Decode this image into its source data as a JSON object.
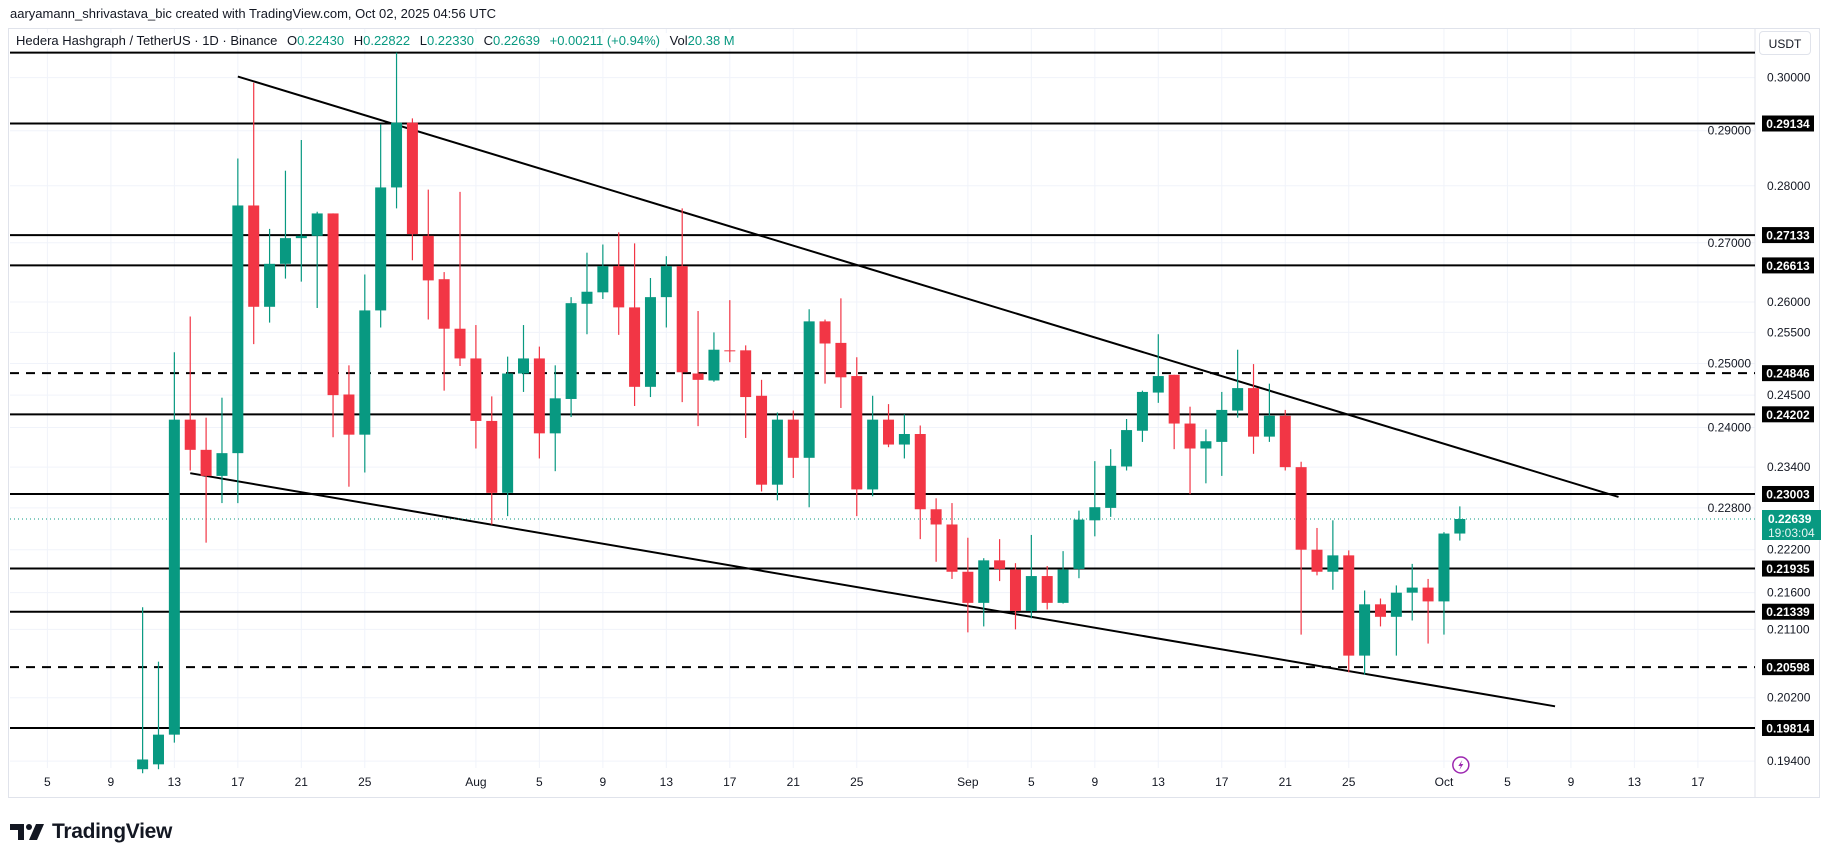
{
  "attribution": "aaryamann_shrivastava_bic created with TradingView.com, Oct 02, 2025 04:56 UTC",
  "legend": {
    "symbol": "Hedera Hashgraph / TetherUS · 1D · Binance",
    "o_label": "O",
    "open": "0.22430",
    "h_label": "H",
    "high": "0.22822",
    "l_label": "L",
    "low": "0.22330",
    "c_label": "C",
    "close": "0.22639",
    "change": "+0.00211 (+0.94%)",
    "vol_label": "Vol",
    "volume": "20.38 M"
  },
  "currency_button": "USDT",
  "logo_text": "TradingView",
  "colors": {
    "up": "#089981",
    "down": "#f23645",
    "level": "#000000",
    "event_icon": "#9c27b0",
    "grid": "#f0f3fa"
  },
  "event_icon": "lightning-icon",
  "current_price": {
    "value": "0.22639",
    "countdown": "19:03:04"
  },
  "chart_data": {
    "type": "candlestick",
    "title": "Hedera Hashgraph / TetherUS · 1D · Binance",
    "y_scale": "log",
    "grid": true,
    "price_ticks": [
      "0.30000",
      "0.29000",
      "0.28000",
      "0.27000",
      "0.26000",
      "0.25500",
      "0.25000",
      "0.24500",
      "0.24000",
      "0.23400",
      "0.22800",
      "0.22200",
      "0.21600",
      "0.21100",
      "0.20200",
      "0.19400"
    ],
    "time_ticks": [
      [
        "5",
        "2025-07-05"
      ],
      [
        "9",
        "2025-07-09"
      ],
      [
        "13",
        "2025-07-13"
      ],
      [
        "17",
        "2025-07-17"
      ],
      [
        "21",
        "2025-07-21"
      ],
      [
        "25",
        "2025-07-25"
      ],
      [
        "Aug",
        "2025-08-01"
      ],
      [
        "5",
        "2025-08-05"
      ],
      [
        "9",
        "2025-08-09"
      ],
      [
        "13",
        "2025-08-13"
      ],
      [
        "17",
        "2025-08-17"
      ],
      [
        "21",
        "2025-08-21"
      ],
      [
        "25",
        "2025-08-25"
      ],
      [
        "Sep",
        "2025-09-01"
      ],
      [
        "5",
        "2025-09-05"
      ],
      [
        "9",
        "2025-09-09"
      ],
      [
        "13",
        "2025-09-13"
      ],
      [
        "17",
        "2025-09-17"
      ],
      [
        "21",
        "2025-09-21"
      ],
      [
        "25",
        "2025-09-25"
      ],
      [
        "Oct",
        "2025-10-01"
      ],
      [
        "5",
        "2025-10-05"
      ],
      [
        "9",
        "2025-10-09"
      ],
      [
        "13",
        "2025-10-13"
      ],
      [
        "17",
        "2025-10-17"
      ]
    ],
    "levels": [
      {
        "price": 0.3048,
        "label": "",
        "dashed": false
      },
      {
        "price": 0.29134,
        "label": "0.29134",
        "dashed": false
      },
      {
        "price": 0.27133,
        "label": "0.27133",
        "dashed": false
      },
      {
        "price": 0.26613,
        "label": "0.26613",
        "dashed": false
      },
      {
        "price": 0.24846,
        "label": "0.24846",
        "dashed": true
      },
      {
        "price": 0.24202,
        "label": "0.24202",
        "dashed": false
      },
      {
        "price": 0.23003,
        "label": "0.23003",
        "dashed": false
      },
      {
        "price": 0.21935,
        "label": "0.21935",
        "dashed": false
      },
      {
        "price": 0.21339,
        "label": "0.21339",
        "dashed": false
      },
      {
        "price": 0.20598,
        "label": "0.20598",
        "dashed": true
      },
      {
        "price": 0.19814,
        "label": "0.19814",
        "dashed": false
      }
    ],
    "trendlines": [
      {
        "start": [
          "2025-07-17",
          0.3002
        ],
        "end": [
          "2025-10-12",
          0.2296
        ]
      },
      {
        "start": [
          "2025-07-14",
          0.2331
        ],
        "end": [
          "2025-10-08",
          0.2009
        ]
      }
    ],
    "event_date": "2025-10-02",
    "candles_fields": [
      "date",
      "open",
      "high",
      "low",
      "close"
    ],
    "candles": [
      [
        "2025-07-11",
        0.193,
        0.214,
        0.1925,
        0.1942
      ],
      [
        "2025-07-12",
        0.1936,
        0.2067,
        0.193,
        0.1973
      ],
      [
        "2025-07-13",
        0.1973,
        0.2518,
        0.1963,
        0.2412
      ],
      [
        "2025-07-14",
        0.2412,
        0.2576,
        0.2335,
        0.2366
      ],
      [
        "2025-07-15",
        0.2366,
        0.2415,
        0.223,
        0.2327
      ],
      [
        "2025-07-16",
        0.2327,
        0.2446,
        0.2287,
        0.2361
      ],
      [
        "2025-07-17",
        0.2361,
        0.2849,
        0.2287,
        0.2765
      ],
      [
        "2025-07-18",
        0.2765,
        0.299,
        0.2531,
        0.2592
      ],
      [
        "2025-07-19",
        0.2592,
        0.2724,
        0.2566,
        0.2664
      ],
      [
        "2025-07-20",
        0.2664,
        0.2827,
        0.2639,
        0.2708
      ],
      [
        "2025-07-21",
        0.2708,
        0.2883,
        0.2634,
        0.2712
      ],
      [
        "2025-07-22",
        0.2712,
        0.2754,
        0.259,
        0.2751
      ],
      [
        "2025-07-23",
        0.2751,
        0.2751,
        0.2385,
        0.245
      ],
      [
        "2025-07-24",
        0.2451,
        0.2497,
        0.2311,
        0.2389
      ],
      [
        "2025-07-25",
        0.2389,
        0.2646,
        0.2332,
        0.2586
      ],
      [
        "2025-07-26",
        0.2586,
        0.2912,
        0.2558,
        0.2797
      ],
      [
        "2025-07-27",
        0.2797,
        0.3048,
        0.276,
        0.2915
      ],
      [
        "2025-07-28",
        0.2915,
        0.2923,
        0.267,
        0.2715
      ],
      [
        "2025-07-29",
        0.2712,
        0.2793,
        0.2571,
        0.2636
      ],
      [
        "2025-07-30",
        0.2638,
        0.265,
        0.2457,
        0.2556
      ],
      [
        "2025-07-31",
        0.2556,
        0.2789,
        0.2496,
        0.2508
      ],
      [
        "2025-08-01",
        0.2508,
        0.2562,
        0.2368,
        0.241
      ],
      [
        "2025-08-02",
        0.241,
        0.2448,
        0.2256,
        0.2302
      ],
      [
        "2025-08-03",
        0.2302,
        0.2511,
        0.2268,
        0.2484
      ],
      [
        "2025-08-04",
        0.2484,
        0.2562,
        0.2455,
        0.2508
      ],
      [
        "2025-08-05",
        0.2508,
        0.2527,
        0.2353,
        0.2391
      ],
      [
        "2025-08-06",
        0.2391,
        0.2497,
        0.2334,
        0.2445
      ],
      [
        "2025-08-07",
        0.2444,
        0.2608,
        0.2416,
        0.2598
      ],
      [
        "2025-08-08",
        0.2597,
        0.2683,
        0.2547,
        0.2617
      ],
      [
        "2025-08-09",
        0.2616,
        0.2697,
        0.2605,
        0.266
      ],
      [
        "2025-08-10",
        0.266,
        0.2718,
        0.2546,
        0.2591
      ],
      [
        "2025-08-11",
        0.2591,
        0.2699,
        0.2433,
        0.2463
      ],
      [
        "2025-08-12",
        0.2463,
        0.264,
        0.2447,
        0.2608
      ],
      [
        "2025-08-13",
        0.2608,
        0.2677,
        0.2558,
        0.266
      ],
      [
        "2025-08-14",
        0.266,
        0.276,
        0.2439,
        0.2486
      ],
      [
        "2025-08-15",
        0.2484,
        0.2585,
        0.2402,
        0.2474
      ],
      [
        "2025-08-16",
        0.2473,
        0.255,
        0.2471,
        0.2522
      ],
      [
        "2025-08-17",
        0.2521,
        0.2603,
        0.2502,
        0.252
      ],
      [
        "2025-08-18",
        0.2521,
        0.2529,
        0.2384,
        0.2447
      ],
      [
        "2025-08-19",
        0.2449,
        0.2474,
        0.2304,
        0.2314
      ],
      [
        "2025-08-20",
        0.2314,
        0.2423,
        0.2291,
        0.2412
      ],
      [
        "2025-08-21",
        0.2412,
        0.2426,
        0.2324,
        0.2354
      ],
      [
        "2025-08-22",
        0.2354,
        0.2588,
        0.2281,
        0.2568
      ],
      [
        "2025-08-23",
        0.2568,
        0.2571,
        0.2468,
        0.2532
      ],
      [
        "2025-08-24",
        0.2533,
        0.2606,
        0.243,
        0.2478
      ],
      [
        "2025-08-25",
        0.248,
        0.251,
        0.2268,
        0.2307
      ],
      [
        "2025-08-26",
        0.2307,
        0.2449,
        0.2297,
        0.2412
      ],
      [
        "2025-08-27",
        0.2412,
        0.2436,
        0.237,
        0.2374
      ],
      [
        "2025-08-28",
        0.2374,
        0.242,
        0.2353,
        0.239
      ],
      [
        "2025-08-29",
        0.239,
        0.2403,
        0.2235,
        0.2278
      ],
      [
        "2025-08-30",
        0.2278,
        0.2294,
        0.2203,
        0.2256
      ],
      [
        "2025-08-31",
        0.2256,
        0.2287,
        0.2179,
        0.2189
      ],
      [
        "2025-09-01",
        0.2189,
        0.2237,
        0.2106,
        0.2146
      ],
      [
        "2025-09-02",
        0.2146,
        0.2208,
        0.2114,
        0.2205
      ],
      [
        "2025-09-03",
        0.2205,
        0.2235,
        0.2176,
        0.2193
      ],
      [
        "2025-09-04",
        0.2192,
        0.2201,
        0.211,
        0.2135
      ],
      [
        "2025-09-05",
        0.2135,
        0.2241,
        0.2125,
        0.2183
      ],
      [
        "2025-09-06",
        0.2183,
        0.2197,
        0.2137,
        0.2146
      ],
      [
        "2025-09-07",
        0.2146,
        0.2218,
        0.2145,
        0.2192
      ],
      [
        "2025-09-08",
        0.2193,
        0.2276,
        0.218,
        0.2263
      ],
      [
        "2025-09-09",
        0.2262,
        0.2349,
        0.2239,
        0.2281
      ],
      [
        "2025-09-10",
        0.228,
        0.2367,
        0.2267,
        0.2342
      ],
      [
        "2025-09-11",
        0.2341,
        0.2413,
        0.2335,
        0.2396
      ],
      [
        "2025-09-12",
        0.2395,
        0.2457,
        0.2378,
        0.2455
      ],
      [
        "2025-09-13",
        0.2454,
        0.2547,
        0.2438,
        0.248
      ],
      [
        "2025-09-14",
        0.2482,
        0.2482,
        0.2367,
        0.2406
      ],
      [
        "2025-09-15",
        0.2406,
        0.2432,
        0.23,
        0.2368
      ],
      [
        "2025-09-16",
        0.2368,
        0.2397,
        0.2316,
        0.2379
      ],
      [
        "2025-09-17",
        0.2378,
        0.2455,
        0.2327,
        0.2427
      ],
      [
        "2025-09-18",
        0.2426,
        0.2522,
        0.2415,
        0.2461
      ],
      [
        "2025-09-19",
        0.2461,
        0.2499,
        0.236,
        0.2386
      ],
      [
        "2025-09-20",
        0.2386,
        0.2468,
        0.2378,
        0.2418
      ],
      [
        "2025-09-21",
        0.2418,
        0.2427,
        0.2335,
        0.234
      ],
      [
        "2025-09-22",
        0.234,
        0.2348,
        0.2103,
        0.222
      ],
      [
        "2025-09-23",
        0.222,
        0.2251,
        0.2184,
        0.2189
      ],
      [
        "2025-09-24",
        0.2189,
        0.2262,
        0.2164,
        0.2212
      ],
      [
        "2025-09-25",
        0.2212,
        0.2219,
        0.2053,
        0.2075
      ],
      [
        "2025-09-26",
        0.2075,
        0.2163,
        0.205,
        0.2144
      ],
      [
        "2025-09-27",
        0.2144,
        0.2152,
        0.2114,
        0.2127
      ],
      [
        "2025-09-28",
        0.2127,
        0.217,
        0.2075,
        0.216
      ],
      [
        "2025-09-29",
        0.216,
        0.22,
        0.2122,
        0.2167
      ],
      [
        "2025-09-30",
        0.2167,
        0.2179,
        0.2091,
        0.2148
      ],
      [
        "2025-10-01",
        0.2148,
        0.2245,
        0.2103,
        0.2243
      ],
      [
        "2025-10-02",
        0.2243,
        0.22822,
        0.2233,
        0.22639
      ]
    ]
  }
}
